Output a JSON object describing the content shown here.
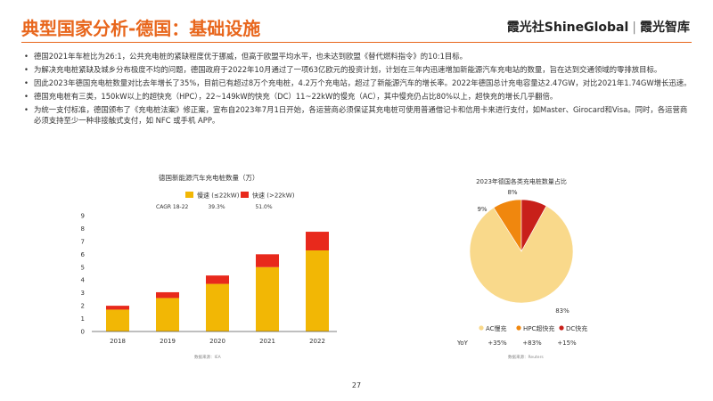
{
  "page": {
    "title": "典型国家分析-德国：基础设施",
    "logo": {
      "brand": "霞光社ShineGlobal",
      "divider": "|",
      "sub": "霞光智库"
    },
    "bullets": [
      "德国2021年车桩比为26:1，公共充电桩的紧缺程度优于挪威，但高于欧盟平均水平，也未达到欧盟《替代燃料指令》的10:1目标。",
      "为解决充电桩紧缺及城乡分布极度不均的问题，德国政府于2022年10月通过了一项63亿欧元的投资计划，计划在三年内迅速增加新能源汽车充电站的数量，旨在达到交通领域的零排放目标。",
      "因此2023年德国充电桩数量对比去年增长了35%，目前已有超过8万个充电桩，4.2万个充电站，超过了新能源汽车的增长率。2022年德国总计充电容量达2.47GW，对比2021年1.74GW增长迅速。",
      "德国充电桩有三类，150kW以上的超快充（HPC），22~149kW的快充（DC）11~22kW的慢充（AC），其中慢充仍占比80%以上，超快充的增长几乎翻倍。",
      "为统一支付标准，德国颁布了《充电桩法案》修正案，宣布自2023年7月1日开始，各运营商必须保证其充电桩可使用普通借记卡和信用卡来进行支付，如Master、Girocard和Visa。同时，各运营商必须支持至少一种非接触式支付，如 NFC 或手机 APP。"
    ],
    "page_number": "27"
  },
  "chart_data": [
    {
      "type": "bar",
      "stacked": true,
      "title": "德国新能源汽车充电桩数量（万）",
      "categories": [
        "2018",
        "2019",
        "2020",
        "2021",
        "2022"
      ],
      "series": [
        {
          "name": "慢速 (≤22kW)",
          "values": [
            1.7,
            2.6,
            3.7,
            5.0,
            6.3
          ],
          "color": "#F2B705",
          "cagr": "39.3%"
        },
        {
          "name": "快速 (>22kW)",
          "values": [
            0.3,
            0.45,
            0.65,
            1.0,
            1.45
          ],
          "color": "#E8291C",
          "cagr": "51.0%"
        }
      ],
      "cagr_label": "CAGR 18-22",
      "ylim": [
        0,
        9
      ],
      "yticks": [
        "0",
        "1",
        "2",
        "3",
        "4",
        "5",
        "6",
        "7",
        "8",
        "9"
      ],
      "grid": false,
      "legend": "top",
      "source": "数据来源：IEA"
    },
    {
      "type": "pie",
      "title": "2023年德国各类充电桩数量占比",
      "slices": [
        {
          "label": "AC慢充",
          "value": 83,
          "text": "83%",
          "color": "#F9D98B",
          "yoy": "+35%"
        },
        {
          "label": "HPC超快充",
          "value": 9,
          "text": "9%",
          "color": "#F0870E",
          "yoy": "+83%"
        },
        {
          "label": "DC快充",
          "value": 8,
          "text": "8%",
          "color": "#C8201A",
          "yoy": "+15%"
        }
      ],
      "yoy_label": "YoY",
      "legend": "bottom",
      "source": "数据来源：Reuters"
    }
  ]
}
